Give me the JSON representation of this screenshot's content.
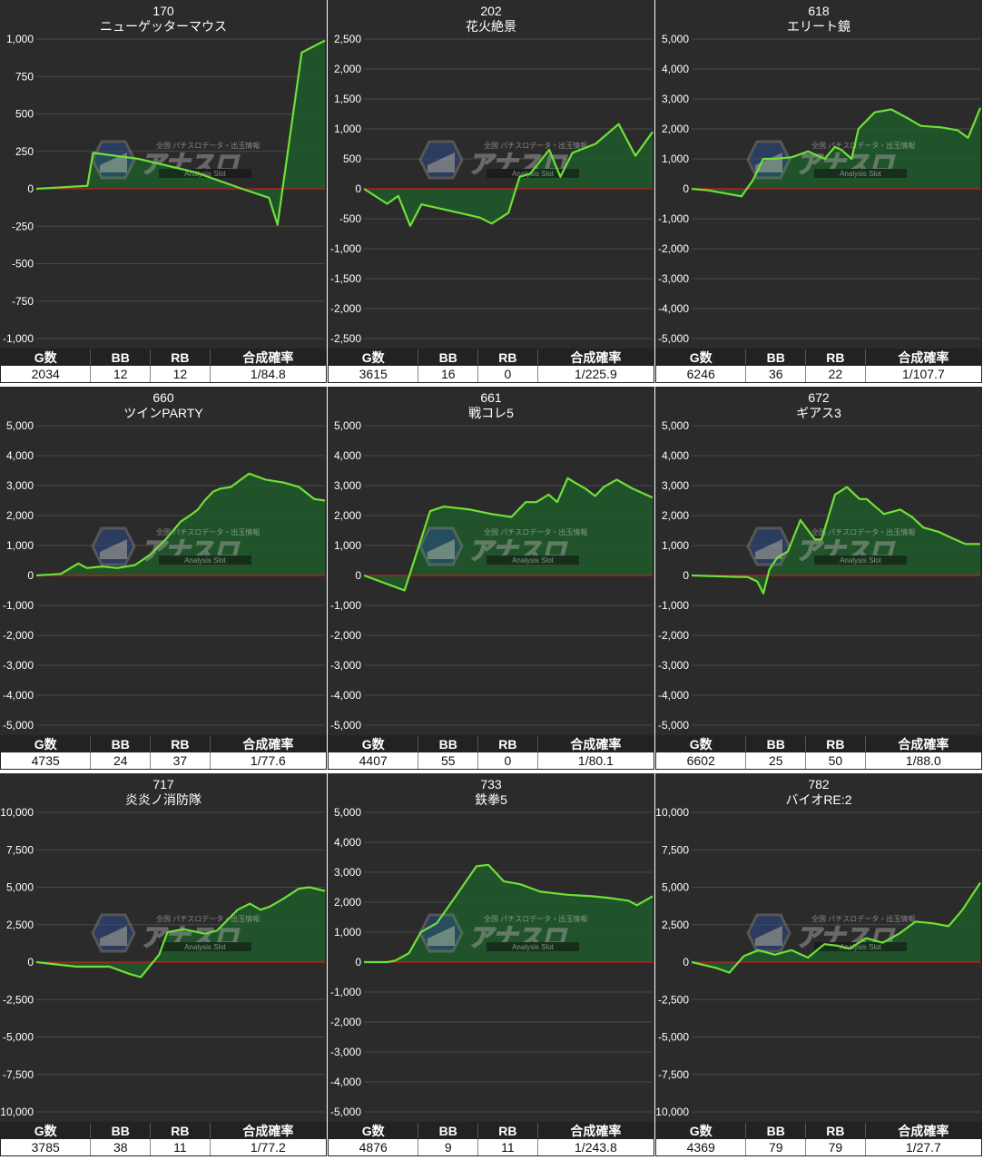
{
  "table_headers": [
    "G数",
    "BB",
    "RB",
    "合成確率"
  ],
  "colors": {
    "line": "#6fe038",
    "fill": "#1f5a2a",
    "zero_line": "#cc1a1a",
    "grid": "#4a4a4a",
    "panel_bg": "#2b2b2b",
    "text": "#ffffff"
  },
  "watermark": {
    "main": "アナスロ",
    "sub": "Analysis Slot",
    "top": "全国 パチスロデータ・出玉情報"
  },
  "panels": [
    {
      "number": "170",
      "title": "ニューゲッターマウス",
      "stats": {
        "games": "2034",
        "bb": "12",
        "rb": "12",
        "rate": "1/84.8"
      }
    },
    {
      "number": "202",
      "title": "花火絶景",
      "stats": {
        "games": "3615",
        "bb": "16",
        "rb": "0",
        "rate": "1/225.9"
      }
    },
    {
      "number": "618",
      "title": "エリート鏡",
      "stats": {
        "games": "6246",
        "bb": "36",
        "rb": "22",
        "rate": "1/107.7"
      }
    },
    {
      "number": "660",
      "title": "ツインPARTY",
      "stats": {
        "games": "4735",
        "bb": "24",
        "rb": "37",
        "rate": "1/77.6"
      }
    },
    {
      "number": "661",
      "title": "戦コレ5",
      "stats": {
        "games": "4407",
        "bb": "55",
        "rb": "0",
        "rate": "1/80.1"
      }
    },
    {
      "number": "672",
      "title": "ギアス3",
      "stats": {
        "games": "6602",
        "bb": "25",
        "rb": "50",
        "rate": "1/88.0"
      }
    },
    {
      "number": "717",
      "title": "炎炎ノ消防隊",
      "stats": {
        "games": "3785",
        "bb": "38",
        "rb": "11",
        "rate": "1/77.2"
      }
    },
    {
      "number": "733",
      "title": "鉄拳5",
      "stats": {
        "games": "4876",
        "bb": "9",
        "rb": "11",
        "rate": "1/243.8"
      }
    },
    {
      "number": "782",
      "title": "バイオRE:2",
      "stats": {
        "games": "4369",
        "bb": "79",
        "rb": "79",
        "rate": "1/27.7"
      }
    }
  ],
  "chart_data": [
    {
      "type": "area",
      "ylim": [
        -1000,
        1000
      ],
      "yticks": [
        1000,
        750,
        500,
        250,
        0,
        -250,
        -500,
        -750,
        -1000
      ],
      "ytick_labels": [
        "1,000",
        "750",
        "500",
        "250",
        "0",
        "-250",
        "-500",
        "-750",
        "-1,000"
      ],
      "x": [
        0,
        360,
        400,
        720,
        1120,
        1450,
        1640,
        1700,
        1870,
        2034
      ],
      "y": [
        0,
        20,
        240,
        200,
        110,
        0,
        -60,
        -240,
        910,
        990
      ]
    },
    {
      "type": "area",
      "ylim": [
        -2500,
        2500
      ],
      "yticks": [
        2500,
        2000,
        1500,
        1000,
        500,
        0,
        -500,
        -1000,
        -1500,
        -2000,
        -2500
      ],
      "ytick_labels": [
        "2,500",
        "2,000",
        "1,500",
        "1,000",
        "500",
        "0",
        "-500",
        "-1,000",
        "-1,500",
        "-2,000",
        "-2,500"
      ],
      "x": [
        0,
        290,
        430,
        580,
        720,
        1020,
        1450,
        1600,
        1810,
        1950,
        2080,
        2320,
        2460,
        2610,
        2900,
        3190,
        3400,
        3615
      ],
      "y": [
        0,
        -250,
        -120,
        -620,
        -260,
        -350,
        -480,
        -580,
        -400,
        200,
        250,
        650,
        200,
        600,
        750,
        1080,
        550,
        950
      ]
    },
    {
      "type": "area",
      "ylim": [
        -5000,
        5000
      ],
      "yticks": [
        5000,
        4000,
        3000,
        2000,
        1000,
        0,
        -1000,
        -2000,
        -3000,
        -4000,
        -5000
      ],
      "ytick_labels": [
        "5,000",
        "4,000",
        "3,000",
        "2,000",
        "1,000",
        "0",
        "-1,000",
        "-2,000",
        "-3,000",
        "-4,000",
        "-5,000"
      ],
      "x": [
        0,
        360,
        1080,
        1330,
        1550,
        1800,
        2160,
        2520,
        2880,
        3100,
        3240,
        3460,
        3610,
        3960,
        4320,
        4680,
        4960,
        5400,
        5760,
        5980,
        6246
      ],
      "y": [
        0,
        -50,
        -250,
        300,
        1000,
        1000,
        1050,
        1250,
        1000,
        1400,
        1300,
        1000,
        2000,
        2550,
        2650,
        2350,
        2100,
        2050,
        1950,
        1700,
        2700
      ]
    },
    {
      "type": "area",
      "ylim": [
        -5000,
        5000
      ],
      "yticks": [
        5000,
        4000,
        3000,
        2000,
        1000,
        0,
        -1000,
        -2000,
        -3000,
        -4000,
        -5000
      ],
      "ytick_labels": [
        "5,000",
        "4,000",
        "3,000",
        "2,000",
        "1,000",
        "0",
        "-1,000",
        "-2,000",
        "-3,000",
        "-4,000",
        "-5,000"
      ],
      "x": [
        0,
        400,
        690,
        830,
        1080,
        1330,
        1480,
        1620,
        1870,
        2120,
        2370,
        2520,
        2650,
        2760,
        2900,
        3020,
        3190,
        3490,
        3760,
        4060,
        4310,
        4560,
        4735
      ],
      "y": [
        0,
        50,
        400,
        250,
        300,
        250,
        300,
        350,
        700,
        1200,
        1800,
        2000,
        2200,
        2500,
        2800,
        2900,
        2950,
        3400,
        3200,
        3100,
        2950,
        2550,
        2500
      ]
    },
    {
      "type": "area",
      "ylim": [
        -5000,
        5000
      ],
      "yticks": [
        5000,
        4000,
        3000,
        2000,
        1000,
        0,
        -1000,
        -2000,
        -3000,
        -4000,
        -5000
      ],
      "ytick_labels": [
        "5,000",
        "4,000",
        "3,000",
        "2,000",
        "1,000",
        "0",
        "-1,000",
        "-2,000",
        "-3,000",
        "-4,000",
        "-5,000"
      ],
      "x": [
        0,
        620,
        1010,
        1220,
        1620,
        1950,
        2250,
        2470,
        2630,
        2820,
        2950,
        3110,
        3220,
        3380,
        3530,
        3660,
        3860,
        4100,
        4407
      ],
      "y": [
        0,
        -500,
        2150,
        2300,
        2200,
        2050,
        1950,
        2450,
        2450,
        2700,
        2450,
        3250,
        3100,
        2900,
        2650,
        2950,
        3200,
        2900,
        2600
      ]
    },
    {
      "type": "area",
      "ylim": [
        -5000,
        5000
      ],
      "yticks": [
        5000,
        4000,
        3000,
        2000,
        1000,
        0,
        -1000,
        -2000,
        -3000,
        -4000,
        -5000
      ],
      "ytick_labels": [
        "5,000",
        "4,000",
        "3,000",
        "2,000",
        "1,000",
        "0",
        "-1,000",
        "-2,000",
        "-3,000",
        "-4,000",
        "-5,000"
      ],
      "x": [
        0,
        1100,
        1280,
        1500,
        1640,
        1780,
        1960,
        2200,
        2490,
        2820,
        2970,
        3280,
        3550,
        3840,
        4000,
        4400,
        4770,
        5040,
        5300,
        5660,
        5950,
        6260,
        6602
      ],
      "y": [
        0,
        -50,
        -50,
        -200,
        -600,
        200,
        600,
        800,
        1850,
        1200,
        1200,
        2700,
        2950,
        2550,
        2550,
        2050,
        2200,
        1950,
        1600,
        1450,
        1250,
        1050,
        1050
      ]
    },
    {
      "type": "area",
      "ylim": [
        -10000,
        10000
      ],
      "yticks": [
        10000,
        7500,
        5000,
        2500,
        0,
        -2500,
        -5000,
        -7500,
        -10000
      ],
      "ytick_labels": [
        "10,000",
        "7,500",
        "5,000",
        "2,500",
        "0",
        "-2,500",
        "-5,000",
        "-7,500",
        "-10,000"
      ],
      "x": [
        0,
        530,
        960,
        1230,
        1370,
        1610,
        1720,
        1930,
        2210,
        2370,
        2640,
        2800,
        2940,
        3060,
        3230,
        3440,
        3580,
        3785
      ],
      "y": [
        0,
        -300,
        -300,
        -800,
        -1000,
        500,
        2000,
        2200,
        1900,
        2100,
        3500,
        3900,
        3500,
        3700,
        4200,
        4900,
        5000,
        4750
      ]
    },
    {
      "type": "area",
      "ylim": [
        -5000,
        5000
      ],
      "yticks": [
        5000,
        4000,
        3000,
        2000,
        1000,
        0,
        -1000,
        -2000,
        -3000,
        -4000,
        -5000
      ],
      "ytick_labels": [
        "5,000",
        "4,000",
        "3,000",
        "2,000",
        "1,000",
        "0",
        "-1,000",
        "-2,000",
        "-3,000",
        "-4,000",
        "-5,000"
      ],
      "x": [
        0,
        400,
        530,
        760,
        960,
        1230,
        1550,
        1900,
        2100,
        2360,
        2640,
        2980,
        3440,
        3850,
        4120,
        4470,
        4610,
        4876
      ],
      "y": [
        0,
        0,
        50,
        300,
        1000,
        1300,
        2200,
        3200,
        3250,
        2700,
        2600,
        2350,
        2250,
        2200,
        2150,
        2050,
        1900,
        2200
      ]
    },
    {
      "type": "area",
      "ylim": [
        -10000,
        10000
      ],
      "yticks": [
        10000,
        7500,
        5000,
        2500,
        0,
        -2500,
        -5000,
        -7500,
        -10000
      ],
      "ytick_labels": [
        "10,000",
        "7,500",
        "5,000",
        "2,500",
        "0",
        "-2,500",
        "-5,000",
        "-7,500",
        "-10,000"
      ],
      "x": [
        0,
        380,
        570,
        790,
        1010,
        1260,
        1510,
        1760,
        2010,
        2200,
        2390,
        2640,
        2890,
        3140,
        3390,
        3640,
        3890,
        4100,
        4369
      ],
      "y": [
        0,
        -400,
        -700,
        400,
        800,
        500,
        800,
        300,
        1200,
        1100,
        900,
        1600,
        1300,
        1900,
        2700,
        2600,
        2400,
        3500,
        5300
      ]
    }
  ]
}
